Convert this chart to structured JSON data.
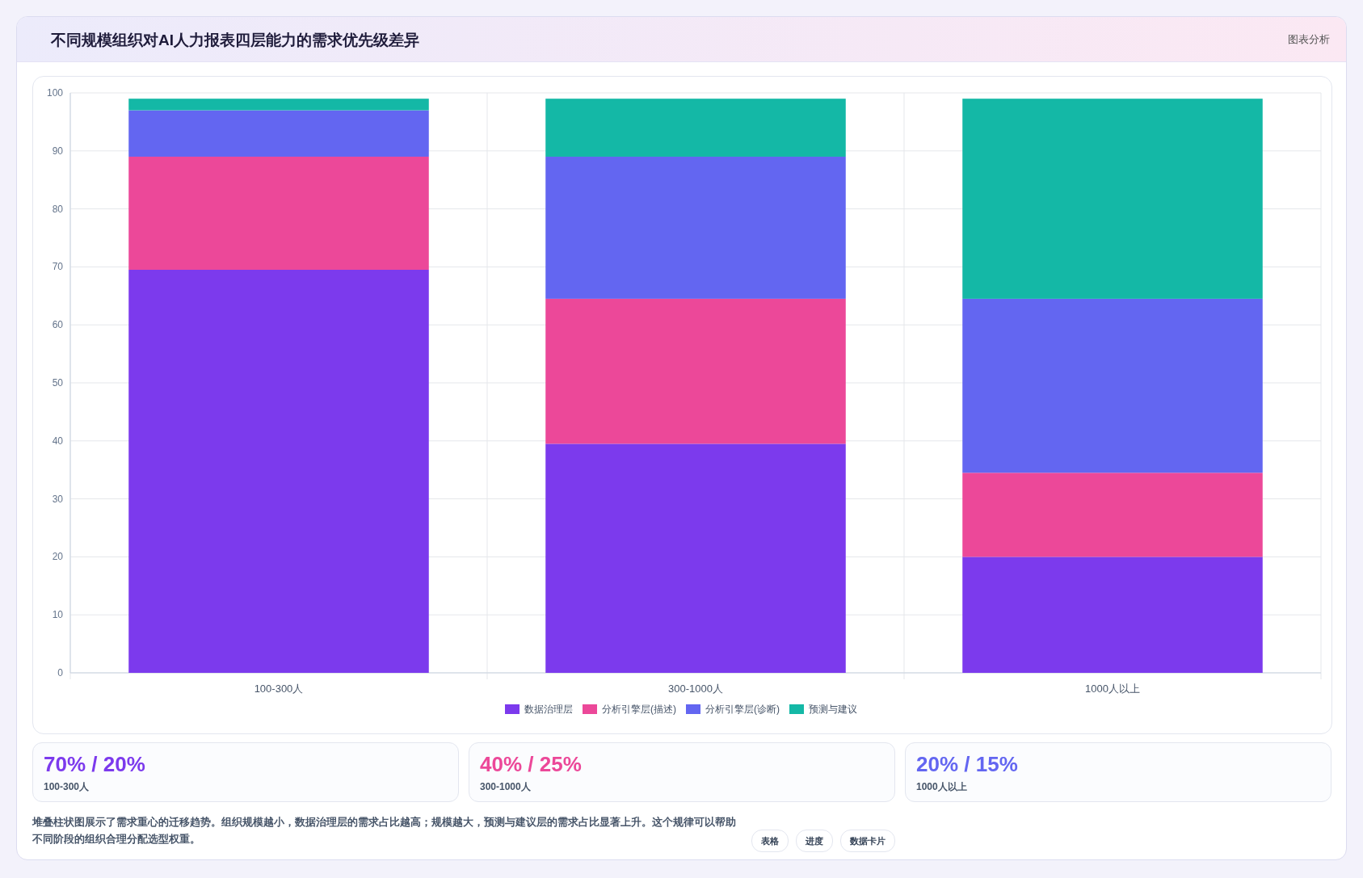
{
  "chart_data": {
    "type": "bar",
    "stacked": true,
    "title": "不同规模组织对AI人力报表四层能力的需求优先级差异",
    "categories": [
      "100-300人",
      "300-1000人",
      "1000人以上"
    ],
    "series": [
      {
        "name": "数据治理层",
        "color": "#7c3aed",
        "values": [
          69.5,
          39.5,
          20
        ]
      },
      {
        "name": "分析引擎层(描述)",
        "color": "#ec4899",
        "values": [
          19.5,
          25,
          14.5
        ]
      },
      {
        "name": "分析引擎层(诊断)",
        "color": "#6366f1",
        "values": [
          8,
          24.5,
          30
        ]
      },
      {
        "name": "预测与建议",
        "color": "#14b8a6",
        "values": [
          2,
          10,
          34.5
        ]
      }
    ],
    "ylim": [
      0,
      100
    ],
    "yticks": [
      0,
      10,
      20,
      30,
      40,
      50,
      60,
      70,
      80,
      90,
      100
    ],
    "grid": true,
    "legend": "bottom",
    "annotations": [
      "图表分析",
      "70% / 20%",
      "100-300人",
      "40% / 25%",
      "300-1000人",
      "20% / 15%",
      "1000人以上",
      "堆叠柱状图展示了需求重心的迁移趋势。组织规模越小，数据治理层的需求占比越高；规模越大，预测与建议层的需求占比显著上升。这个规律可以帮助不同阶段的组织合理分配选型权重。",
      "表格",
      "进度",
      "数据卡片"
    ]
  }
}
